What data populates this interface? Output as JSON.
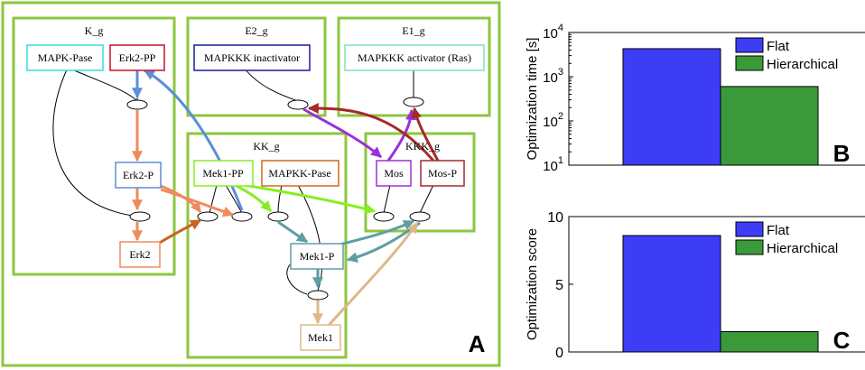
{
  "panel_a": {
    "label": "A",
    "groups": {
      "k_g": "K_g",
      "e2_g": "E2_g",
      "e1_g": "E1_g",
      "kk_g": "KK_g",
      "kkk_g": "KKK_g"
    },
    "nodes": {
      "mapk_pase": "MAPK-Pase",
      "erk2_pp": "Erk2-PP",
      "erk2_p": "Erk2-P",
      "erk2": "Erk2",
      "mapkkk_inactivator": "MAPKKK inactivator",
      "mapkkk_activator": "MAPKKK activator (Ras)",
      "mek1_pp": "Mek1-PP",
      "mapkk_pase": "MAPKK-Pase",
      "mek1_p": "Mek1-P",
      "mek1": "Mek1",
      "mos": "Mos",
      "mos_p": "Mos-P"
    },
    "colors": {
      "group_border": "#8dc63f",
      "mapk_pase": "#33dddd",
      "erk2_pp": "#c8102e",
      "erk2_p": "#5b8fd6",
      "erk2": "#f08a5d",
      "mapkkk_inactivator": "#1c1c9c",
      "mapkkk_activator": "#7fe0c8",
      "mek1_pp": "#88ee22",
      "mapkk_pase": "#d2691e",
      "mek1_p": "#5f9ea0",
      "mek1": "#deb887",
      "mos": "#9b30d9",
      "mos_p": "#a52a2a"
    }
  },
  "chart_data": [
    {
      "type": "bar",
      "panel_label": "B",
      "ylabel": "Optimization time [s]",
      "yscale": "log",
      "ylim": [
        10,
        10000
      ],
      "yticks": [
        {
          "base": "10",
          "exp": "1"
        },
        {
          "base": "10",
          "exp": "2"
        },
        {
          "base": "10",
          "exp": "3"
        },
        {
          "base": "10",
          "exp": "4"
        }
      ],
      "legend_position": "top-right",
      "series": [
        {
          "name": "Flat",
          "value": 4300,
          "color": "#3d3df5"
        },
        {
          "name": "Hierarchical",
          "value": 600,
          "color": "#3a9a3a"
        }
      ]
    },
    {
      "type": "bar",
      "panel_label": "C",
      "ylabel": "Optimization score",
      "yscale": "linear",
      "ylim": [
        0,
        10
      ],
      "yticks": [
        "0",
        "5",
        "10"
      ],
      "legend_position": "top-right",
      "series": [
        {
          "name": "Flat",
          "value": 8.6,
          "color": "#3d3df5"
        },
        {
          "name": "Hierarchical",
          "value": 1.5,
          "color": "#3a9a3a"
        }
      ]
    }
  ]
}
